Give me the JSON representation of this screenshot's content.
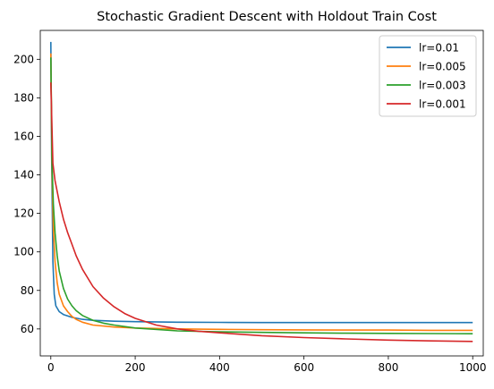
{
  "chart_data": {
    "type": "line",
    "title": "Stochastic Gradient Descent with Holdout Train Cost",
    "xlabel": "",
    "ylabel": "",
    "xlim": [
      -25,
      1025
    ],
    "ylim": [
      46,
      215
    ],
    "xticks": [
      0,
      200,
      400,
      600,
      800,
      1000
    ],
    "yticks": [
      60,
      80,
      100,
      120,
      140,
      160,
      180,
      200
    ],
    "grid": false,
    "legend_position": "top-right",
    "series": [
      {
        "name": "lr=0.01",
        "color": "#1f77b4",
        "x": [
          0,
          2,
          5,
          8,
          12,
          20,
          30,
          50,
          75,
          100,
          150,
          200,
          300,
          400,
          500,
          600,
          700,
          800,
          900,
          1000
        ],
        "y": [
          209,
          150,
          95,
          78,
          72,
          69,
          67.5,
          66,
          65,
          64.5,
          64,
          63.8,
          63.5,
          63.4,
          63.3,
          63.3,
          63.3,
          63.3,
          63.3,
          63.3
        ]
      },
      {
        "name": "lr=0.005",
        "color": "#ff7f0e",
        "x": [
          0,
          3,
          6,
          10,
          15,
          20,
          30,
          40,
          50,
          60,
          75,
          100,
          150,
          200,
          300,
          400,
          500,
          600,
          700,
          800,
          900,
          1000
        ],
        "y": [
          203,
          140,
          112,
          95,
          84,
          78,
          72,
          69,
          66.5,
          65,
          63.5,
          62,
          61,
          60.5,
          60,
          59.8,
          59.6,
          59.5,
          59.4,
          59.4,
          59.3,
          59.3
        ]
      },
      {
        "name": "lr=0.003",
        "color": "#2ca02c",
        "x": [
          0,
          3,
          6,
          10,
          15,
          20,
          30,
          40,
          50,
          60,
          75,
          100,
          125,
          150,
          200,
          300,
          400,
          500,
          600,
          700,
          800,
          900,
          1000
        ],
        "y": [
          201,
          145,
          125,
          110,
          98,
          90,
          81,
          75.5,
          72,
          69.5,
          67,
          64.5,
          63,
          62,
          60.5,
          59,
          58.5,
          58.2,
          58,
          57.8,
          57.7,
          57.6,
          57.5
        ]
      },
      {
        "name": "lr=0.001",
        "color": "#d62728",
        "x": [
          0,
          5,
          10,
          20,
          30,
          40,
          50,
          60,
          75,
          100,
          125,
          150,
          175,
          200,
          250,
          300,
          350,
          400,
          500,
          600,
          700,
          800,
          900,
          1000
        ],
        "y": [
          188,
          146,
          137,
          126,
          117,
          110,
          104,
          98,
          91,
          82,
          76,
          71.5,
          68,
          65.5,
          62,
          60,
          58.8,
          58,
          56.5,
          55.5,
          54.8,
          54.2,
          53.8,
          53.5
        ]
      }
    ]
  }
}
